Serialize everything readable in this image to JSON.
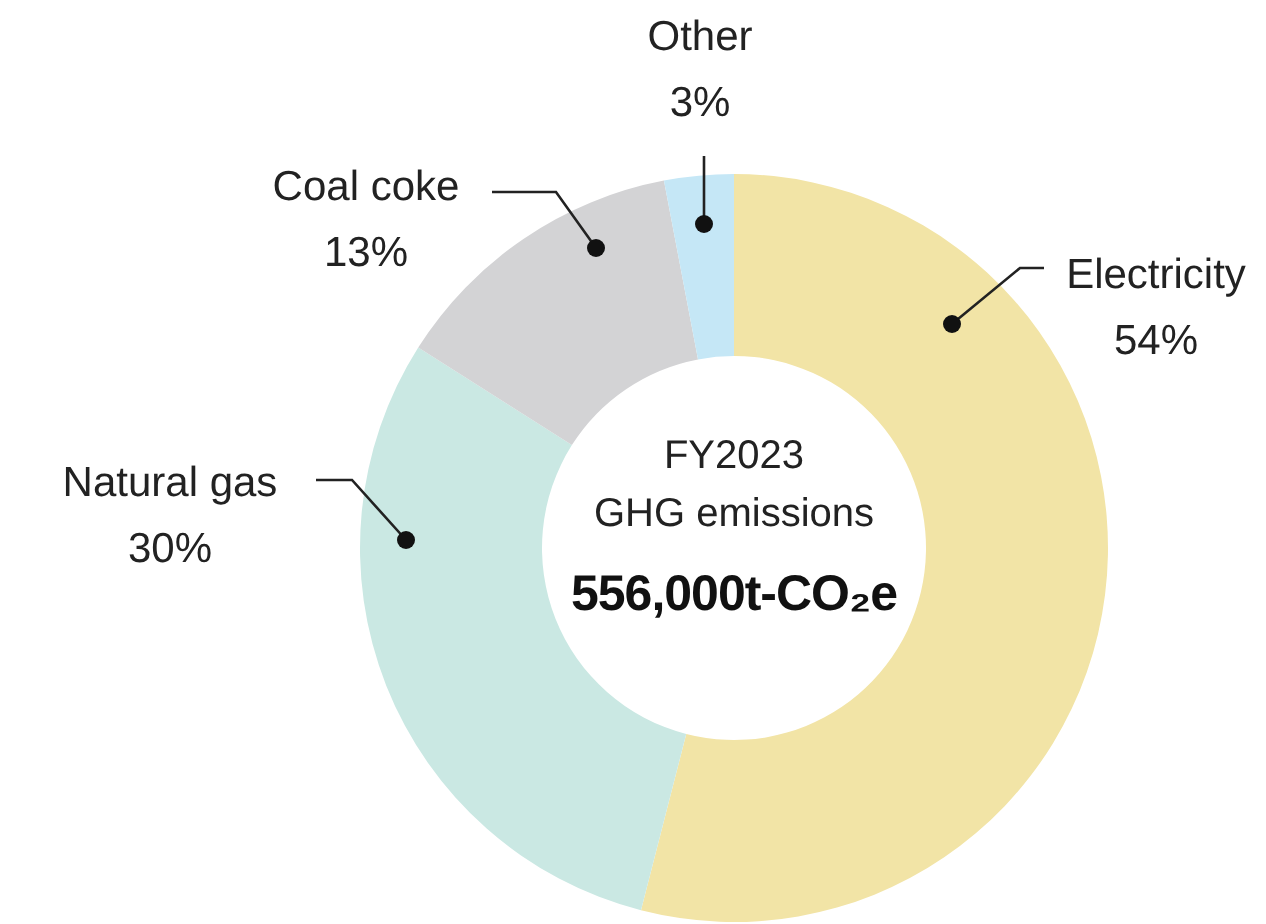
{
  "chart_data": {
    "type": "donut",
    "title": "FY2023 GHG emissions",
    "subtitle": "556,000t-CO₂e",
    "categories": [
      "Electricity",
      "Natural gas",
      "Coal coke",
      "Other"
    ],
    "values": [
      54,
      30,
      13,
      3
    ],
    "value_labels": [
      "54%",
      "30%",
      "13%",
      "3%"
    ],
    "colors": [
      "#f2e4a6",
      "#cae8e3",
      "#d3d3d5",
      "#c5e7f6"
    ]
  }
}
